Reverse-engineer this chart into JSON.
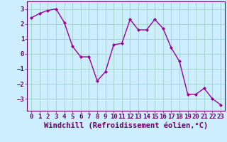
{
  "x": [
    0,
    1,
    2,
    3,
    4,
    5,
    6,
    7,
    8,
    9,
    10,
    11,
    12,
    13,
    14,
    15,
    16,
    17,
    18,
    19,
    20,
    21,
    22,
    23
  ],
  "y": [
    2.4,
    2.7,
    2.9,
    3.0,
    2.1,
    0.5,
    -0.2,
    -0.2,
    -1.8,
    -1.2,
    0.6,
    0.7,
    2.3,
    1.6,
    1.6,
    2.3,
    1.7,
    0.4,
    -0.5,
    -2.7,
    -2.7,
    -2.3,
    -3.0,
    -3.4
  ],
  "line_color": "#990099",
  "marker": "D",
  "marker_size": 2,
  "xlabel": "Windchill (Refroidissement éolien,°C)",
  "xlabel_color": "#660066",
  "background_color": "#cceeff",
  "grid_color": "#99ccbb",
  "tick_color": "#660066",
  "ylim": [
    -3.8,
    3.5
  ],
  "xlim": [
    -0.5,
    23.5
  ],
  "yticks": [
    -3,
    -2,
    -1,
    0,
    1,
    2,
    3
  ],
  "xticks": [
    0,
    1,
    2,
    3,
    4,
    5,
    6,
    7,
    8,
    9,
    10,
    11,
    12,
    13,
    14,
    15,
    16,
    17,
    18,
    19,
    20,
    21,
    22,
    23
  ],
  "spine_color": "#660066",
  "tick_font_size": 6.5,
  "xlabel_font_size": 7.5,
  "linewidth": 1.0
}
